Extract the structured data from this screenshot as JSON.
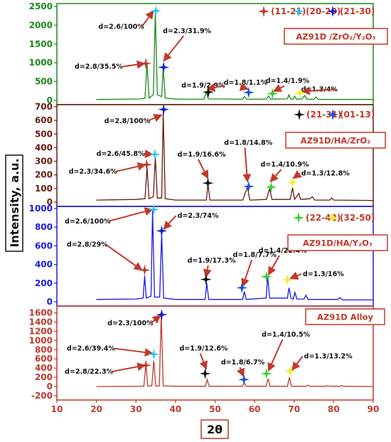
{
  "chart_data": {
    "type": "line",
    "xlabel": "2θ",
    "ylabel": "Intensity, a.u.",
    "xlim": [
      10,
      90
    ],
    "xticks": [
      "10",
      "20",
      "30",
      "40",
      "50",
      "60",
      "70",
      "80",
      "90"
    ],
    "marker_colors": {
      "11-21": "#c0392b",
      "20-20": "#2ec6f5",
      "21-30": "#1020d0",
      "21-31": "#111111",
      "01-13": "#1a4fe0",
      "22-42": "#2fd42f",
      "32-50": "#f0f020"
    },
    "legend": [
      {
        "key": "11-21",
        "label": "(11-21)"
      },
      {
        "key": "20-20",
        "label": "(20-20)"
      },
      {
        "key": "21-30",
        "label": "(21-30)"
      },
      {
        "key": "21-31",
        "label": "(21-31)"
      },
      {
        "key": "01-13",
        "label": "(01-13)"
      },
      {
        "key": "22-42",
        "label": "(22-42)"
      },
      {
        "key": "32-50",
        "label": "(32-50)"
      }
    ],
    "panels": [
      {
        "label": "AZ91D /ZrO₂/Y₂O₃",
        "color": "#1a8a1a",
        "ylim": [
          0,
          2500
        ],
        "yticks": [
          "0",
          "500",
          "1000",
          "1500",
          "2000",
          "2500"
        ],
        "series": [
          {
            "values": [
              [
                20,
                25
              ],
              [
                28,
                30
              ],
              [
                31.5,
                40
              ],
              [
                32.3,
                60
              ],
              [
                32.8,
                980
              ],
              [
                33.3,
                60
              ],
              [
                34.4,
                150
              ],
              [
                34.9,
                2350
              ],
              [
                35.4,
                150
              ],
              [
                36.5,
                100
              ],
              [
                36.9,
                880
              ],
              [
                37.4,
                60
              ],
              [
                40,
                35
              ],
              [
                47.2,
                30
              ],
              [
                47.8,
                220
              ],
              [
                48.3,
                40
              ],
              [
                57,
                30
              ],
              [
                57.4,
                100
              ],
              [
                58,
                30
              ],
              [
                63,
                35
              ],
              [
                63.5,
                120
              ],
              [
                64,
                35
              ],
              [
                68.3,
                40
              ],
              [
                68.7,
                150
              ],
              [
                69.1,
                40
              ],
              [
                69.7,
                30
              ],
              [
                70.1,
                110
              ],
              [
                70.6,
                30
              ],
              [
                72,
                40
              ],
              [
                72.7,
                130
              ],
              [
                73.2,
                30
              ],
              [
                75,
                30
              ],
              [
                75.5,
                90
              ],
              [
                76,
                30
              ],
              [
                78,
                25
              ],
              [
                81,
                25
              ],
              [
                90,
                25
              ]
            ]
          }
        ],
        "markers": [
          {
            "key": "11-21",
            "x": 32.5,
            "y": 980
          },
          {
            "key": "20-20",
            "x": 35.0,
            "y": 2380
          },
          {
            "key": "21-30",
            "x": 37.0,
            "y": 880
          },
          {
            "key": "21-31",
            "x": 48.3,
            "y": 220
          },
          {
            "key": "01-13",
            "x": 58.5,
            "y": 210
          },
          {
            "key": "22-42",
            "x": 64.5,
            "y": 180
          },
          {
            "key": "32-50",
            "x": 71.5,
            "y": 190
          }
        ],
        "annotations": [
          {
            "text": "d=2.6/100%",
            "tx": 20.5,
            "ty": 1900,
            "ax": 34.4,
            "ay": 2380
          },
          {
            "text": "d=2.3/31.9%",
            "tx": 36.8,
            "ty": 1790,
            "ax": 37.0,
            "ay": 1050
          },
          {
            "text": "d=2.8/35.5%",
            "tx": 14.5,
            "ty": 840,
            "ax": 32.2,
            "ay": 980
          },
          {
            "text": "d=1.9/2.9%",
            "tx": 41.5,
            "ty": 340,
            "ax": 48.0,
            "ay": 300
          },
          {
            "text": "d=1.8/1.1%",
            "tx": 52.2,
            "ty": 420,
            "ax": 58.3,
            "ay": 300
          },
          {
            "text": "d=1.4/1.9%",
            "tx": 62.8,
            "ty": 460,
            "ax": 64.8,
            "ay": 240
          },
          {
            "text": "d=1.3/4%",
            "tx": 71.8,
            "ty": 240,
            "ax": 72.0,
            "ay": 240
          }
        ]
      },
      {
        "label": "AZ91D/HA/ZrO₂",
        "color": "#6b1a12",
        "ylim": [
          0,
          700
        ],
        "yticks": [
          "0",
          "100",
          "200",
          "300",
          "400",
          "500",
          "600",
          "700"
        ],
        "series": [
          {
            "values": [
              [
                20,
                15
              ],
              [
                30,
                20
              ],
              [
                32.3,
                25
              ],
              [
                32.8,
                260
              ],
              [
                33.3,
                25
              ],
              [
                34.4,
                40
              ],
              [
                34.9,
                330
              ],
              [
                35.4,
                30
              ],
              [
                36.5,
                30
              ],
              [
                36.9,
                660
              ],
              [
                37.4,
                25
              ],
              [
                40,
                15
              ],
              [
                47.8,
                15
              ],
              [
                48.2,
                130
              ],
              [
                48.7,
                15
              ],
              [
                57,
                15
              ],
              [
                58.2,
                110
              ],
              [
                58.8,
                15
              ],
              [
                63,
                20
              ],
              [
                63.8,
                100
              ],
              [
                64.4,
                20
              ],
              [
                69,
                20
              ],
              [
                69.6,
                105
              ],
              [
                70.1,
                20
              ],
              [
                71.2,
                65
              ],
              [
                71.6,
                20
              ],
              [
                74,
                25
              ],
              [
                74.6,
                40
              ],
              [
                75.2,
                15
              ],
              [
                79,
                15
              ],
              [
                79.5,
                30
              ],
              [
                80,
                15
              ],
              [
                90,
                12
              ]
            ]
          }
        ],
        "markers": [
          {
            "key": "11-21",
            "x": 32.7,
            "y": 275
          },
          {
            "key": "20-20",
            "x": 34.8,
            "y": 350
          },
          {
            "key": "21-30",
            "x": 37.0,
            "y": 680
          },
          {
            "key": "21-31",
            "x": 48.2,
            "y": 140
          },
          {
            "key": "01-13",
            "x": 58.5,
            "y": 115
          },
          {
            "key": "22-42",
            "x": 64.2,
            "y": 110
          },
          {
            "key": "32-50",
            "x": 69.6,
            "y": 145
          }
        ],
        "annotations": [
          {
            "text": "d=2.8/100%",
            "tx": 22.0,
            "ty": 580,
            "ax": 36.5,
            "ay": 640
          },
          {
            "text": "d=2.6/45.8%",
            "tx": 20.0,
            "ty": 340,
            "ax": 34.2,
            "ay": 350
          },
          {
            "text": "d=2.3/34.6%",
            "tx": 13.0,
            "ty": 210,
            "ax": 32.4,
            "ay": 275
          },
          {
            "text": "d=1.9/16.6%",
            "tx": 40.5,
            "ty": 335,
            "ax": 48.2,
            "ay": 175
          },
          {
            "text": "d=1.8/14.8%",
            "tx": 52.3,
            "ty": 420,
            "ax": 58.2,
            "ay": 150
          },
          {
            "text": "d=1.4/10.9%",
            "tx": 61.5,
            "ty": 260,
            "ax": 64.0,
            "ay": 150
          },
          {
            "text": "d=1.3/12.8%",
            "tx": 71.8,
            "ty": 195,
            "ax": 69.8,
            "ay": 175
          }
        ]
      },
      {
        "label": "AZ91D/HA/Y₂O₃",
        "color": "#1a1ae0",
        "ylim": [
          0,
          1000
        ],
        "yticks": [
          "0",
          "200",
          "400",
          "600",
          "800",
          "1000"
        ],
        "series": [
          {
            "values": [
              [
                20,
                25
              ],
              [
                30,
                30
              ],
              [
                31.8,
                40
              ],
              [
                32.2,
                280
              ],
              [
                32.6,
                40
              ],
              [
                33.8,
                60
              ],
              [
                34.2,
                980
              ],
              [
                34.7,
                50
              ],
              [
                36,
                50
              ],
              [
                36.5,
                730
              ],
              [
                37,
                40
              ],
              [
                40,
                25
              ],
              [
                47.5,
                25
              ],
              [
                47.9,
                200
              ],
              [
                48.4,
                25
              ],
              [
                57,
                25
              ],
              [
                57.4,
                110
              ],
              [
                57.9,
                25
              ],
              [
                62.9,
                40
              ],
              [
                63.3,
                270
              ],
              [
                63.8,
                40
              ],
              [
                68.3,
                40
              ],
              [
                68.7,
                150
              ],
              [
                69.2,
                40
              ],
              [
                69.8,
                30
              ],
              [
                70.2,
                100
              ],
              [
                70.7,
                30
              ],
              [
                72.5,
                30
              ],
              [
                73,
                70
              ],
              [
                73.5,
                25
              ],
              [
                81,
                25
              ],
              [
                81.6,
                45
              ],
              [
                82.2,
                20
              ],
              [
                90,
                20
              ]
            ]
          }
        ],
        "markers": [
          {
            "key": "11-21",
            "x": 32.2,
            "y": 340
          },
          {
            "key": "20-20",
            "x": 34.5,
            "y": 990
          },
          {
            "key": "21-30",
            "x": 36.5,
            "y": 760
          },
          {
            "key": "21-31",
            "x": 47.7,
            "y": 240
          },
          {
            "key": "01-13",
            "x": 56.8,
            "y": 150
          },
          {
            "key": "22-42",
            "x": 63.0,
            "y": 270
          },
          {
            "key": "32-50",
            "x": 68.3,
            "y": 235
          }
        ],
        "annotations": [
          {
            "text": "d=2.6/100%",
            "tx": 12.0,
            "ty": 840,
            "ax": 34.2,
            "ay": 990
          },
          {
            "text": "d=2.3/74%",
            "tx": 40.5,
            "ty": 900,
            "ax": 37.0,
            "ay": 780
          },
          {
            "text": "d=2.8/29%",
            "tx": 12.5,
            "ty": 590,
            "ax": 31.5,
            "ay": 340
          },
          {
            "text": "d=1.9/17.3%",
            "tx": 43.0,
            "ty": 420,
            "ax": 47.7,
            "ay": 265
          },
          {
            "text": "d=1.8/7.7%",
            "tx": 54.5,
            "ty": 480,
            "ax": 57.0,
            "ay": 165
          },
          {
            "text": "d=1.4/22.4%",
            "tx": 61.0,
            "ty": 525,
            "ax": 63.5,
            "ay": 290
          },
          {
            "text": "d=1.3/16%",
            "tx": 72.2,
            "ty": 275,
            "ax": 69.0,
            "ay": 250
          }
        ]
      },
      {
        "label": "AZ91D Alloy",
        "color": "#c0392b",
        "ylim": [
          -200,
          1700
        ],
        "yticks": [
          "-200",
          "0",
          "200",
          "400",
          "600",
          "800",
          "1000",
          "1200",
          "1400",
          "1600"
        ],
        "series": [
          {
            "values": [
              [
                20,
                0
              ],
              [
                31,
                5
              ],
              [
                32,
                10
              ],
              [
                32.5,
                480
              ],
              [
                33,
                10
              ],
              [
                34,
                15
              ],
              [
                34.5,
                560
              ],
              [
                35,
                10
              ],
              [
                35.9,
                15
              ],
              [
                36.4,
                1560
              ],
              [
                36.9,
                15
              ],
              [
                40,
                5
              ],
              [
                47.6,
                5
              ],
              [
                48,
                150
              ],
              [
                48.5,
                5
              ],
              [
                56.9,
                5
              ],
              [
                57.4,
                80
              ],
              [
                57.9,
                5
              ],
              [
                62.9,
                5
              ],
              [
                63.4,
                170
              ],
              [
                63.9,
                5
              ],
              [
                68.3,
                5
              ],
              [
                68.8,
                200
              ],
              [
                69.3,
                5
              ],
              [
                73,
                5
              ],
              [
                73.5,
                30
              ],
              [
                74,
                5
              ],
              [
                78,
                5
              ],
              [
                78.5,
                20
              ],
              [
                79,
                5
              ],
              [
                81.5,
                5
              ],
              [
                82,
                20
              ],
              [
                82.5,
                5
              ],
              [
                90,
                0
              ]
            ]
          }
        ],
        "markers": [
          {
            "key": "11-21",
            "x": 32.5,
            "y": 460
          },
          {
            "key": "20-20",
            "x": 34.5,
            "y": 700
          },
          {
            "key": "21-30",
            "x": 36.5,
            "y": 1560
          },
          {
            "key": "21-31",
            "x": 47.5,
            "y": 280
          },
          {
            "key": "01-13",
            "x": 57.3,
            "y": 150
          },
          {
            "key": "22-42",
            "x": 63.0,
            "y": 280
          },
          {
            "key": "32-50",
            "x": 69.0,
            "y": 330
          }
        ],
        "annotations": [
          {
            "text": "d=2.3/100%",
            "tx": 22.8,
            "ty": 1330,
            "ax": 36.2,
            "ay": 1540
          },
          {
            "text": "d=2.6/39.4%",
            "tx": 12.5,
            "ty": 780,
            "ax": 34.2,
            "ay": 720
          },
          {
            "text": "d=2.8/22.3%",
            "tx": 12.0,
            "ty": 280,
            "ax": 32.3,
            "ay": 460
          },
          {
            "text": "d=1.9/12.6%",
            "tx": 41.0,
            "ty": 780,
            "ax": 47.8,
            "ay": 380
          },
          {
            "text": "d=1.8/6.7%",
            "tx": 51.5,
            "ty": 480,
            "ax": 57.2,
            "ay": 220
          },
          {
            "text": "d=1.4/10.5%",
            "tx": 61.8,
            "ty": 1080,
            "ax": 63.5,
            "ay": 340
          },
          {
            "text": "d=1.3/13.2%",
            "tx": 72.5,
            "ty": 610,
            "ax": 69.5,
            "ay": 360
          }
        ]
      }
    ]
  }
}
